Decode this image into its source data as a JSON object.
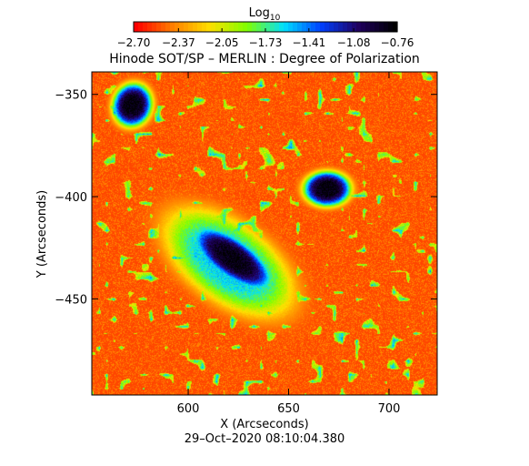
{
  "chart_data": {
    "type": "heatmap",
    "title": "Hinode SOT/SP – MERLIN : Degree of Polarization",
    "xlabel": "X (Arcseconds)",
    "ylabel": "Y (Arcseconds)",
    "timestamp": "29–Oct–2020 08:10:04.380",
    "xlim": [
      552,
      724
    ],
    "ylim": [
      -497,
      -339
    ],
    "x_ticks": [
      600,
      650,
      700
    ],
    "x_tick_labels": [
      "600",
      "650",
      "700"
    ],
    "y_ticks": [
      -350,
      -400,
      -450
    ],
    "y_tick_labels": [
      "−350",
      "−400",
      "−450"
    ],
    "grid": false,
    "colorbar": {
      "label_main": "Log",
      "label_sub": "10",
      "range": [
        -2.7,
        -0.76
      ],
      "ticks": [
        -2.7,
        -2.37,
        -2.05,
        -1.73,
        -1.41,
        -1.08,
        -0.76
      ],
      "tick_labels": [
        "−2.70",
        "−2.37",
        "−2.05",
        "−1.73",
        "−1.41",
        "−1.08",
        "−0.76"
      ],
      "colors": [
        "#ff0000",
        "#ff8000",
        "#ffe000",
        "#80ff00",
        "#00e0ff",
        "#0040ff",
        "#200060",
        "#000000"
      ]
    },
    "features": [
      {
        "name": "sunspot upper-left",
        "x": 572,
        "y": -355,
        "rx": 9,
        "ry": 10,
        "angle": -20,
        "peak": -0.78
      },
      {
        "name": "sunspot right",
        "x": 669,
        "y": -396,
        "rx": 11,
        "ry": 8,
        "angle": 0,
        "peak": -0.78
      },
      {
        "name": "sunspot center",
        "x": 622,
        "y": -430,
        "rx": 22,
        "ry": 9,
        "angle": -35,
        "peak": -0.8
      },
      {
        "name": "penumbra center",
        "x": 620,
        "y": -432,
        "rx": 34,
        "ry": 18,
        "angle": -35,
        "peak": -1.55
      }
    ],
    "background_level": -2.55
  }
}
